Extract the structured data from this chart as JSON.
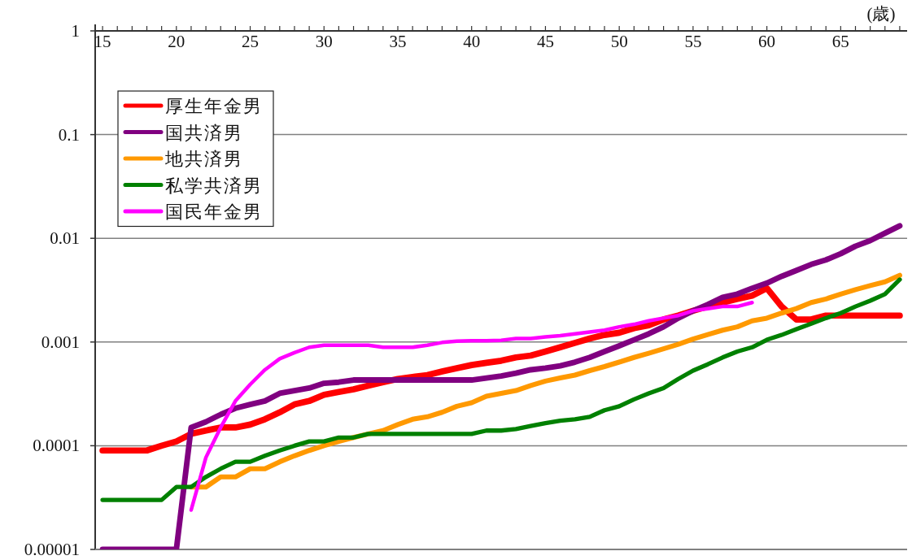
{
  "chart_data": {
    "type": "line",
    "xlabel": "(歳)",
    "log": "y",
    "grid": "y",
    "legend": "top left",
    "x": [
      15,
      16,
      17,
      18,
      19,
      20,
      21,
      22,
      23,
      24,
      25,
      26,
      27,
      28,
      29,
      30,
      31,
      32,
      33,
      34,
      35,
      36,
      37,
      38,
      39,
      40,
      41,
      42,
      43,
      44,
      45,
      46,
      47,
      48,
      49,
      50,
      51,
      52,
      53,
      54,
      55,
      56,
      57,
      58,
      59,
      60,
      61,
      62,
      63,
      64,
      65,
      66,
      67,
      68,
      69
    ],
    "xlim": [
      14.5,
      69.5
    ],
    "xticks": [
      15,
      {
        "value": 16,
        "label": null
      },
      {
        "value": 17,
        "label": null
      },
      {
        "value": 18,
        "label": null
      },
      {
        "value": 19,
        "label": null
      },
      20,
      {
        "value": 21,
        "label": null
      },
      {
        "value": 22,
        "label": null
      },
      {
        "value": 23,
        "label": null
      },
      {
        "value": 24,
        "label": null
      },
      25,
      {
        "value": 26,
        "label": null
      },
      {
        "value": 27,
        "label": null
      },
      {
        "value": 28,
        "label": null
      },
      {
        "value": 29,
        "label": null
      },
      30,
      {
        "value": 31,
        "label": null
      },
      {
        "value": 32,
        "label": null
      },
      {
        "value": 33,
        "label": null
      },
      {
        "value": 34,
        "label": null
      },
      35,
      {
        "value": 36,
        "label": null
      },
      {
        "value": 37,
        "label": null
      },
      {
        "value": 38,
        "label": null
      },
      {
        "value": 39,
        "label": null
      },
      40,
      {
        "value": 41,
        "label": null
      },
      {
        "value": 42,
        "label": null
      },
      {
        "value": 43,
        "label": null
      },
      {
        "value": 44,
        "label": null
      },
      45,
      {
        "value": 46,
        "label": null
      },
      {
        "value": 47,
        "label": null
      },
      {
        "value": 48,
        "label": null
      },
      {
        "value": 49,
        "label": null
      },
      50,
      {
        "value": 51,
        "label": null
      },
      {
        "value": 52,
        "label": null
      },
      {
        "value": 53,
        "label": null
      },
      {
        "value": 54,
        "label": null
      },
      55,
      {
        "value": 56,
        "label": null
      },
      {
        "value": 57,
        "label": null
      },
      {
        "value": 58,
        "label": null
      },
      {
        "value": 59,
        "label": null
      },
      60,
      {
        "value": 61,
        "label": null
      },
      {
        "value": 62,
        "label": null
      },
      {
        "value": 63,
        "label": null
      },
      {
        "value": 64,
        "label": null
      },
      65,
      {
        "value": 66,
        "label": null
      },
      {
        "value": 67,
        "label": null
      },
      {
        "value": 68,
        "label": null
      },
      {
        "value": 69,
        "label": null
      }
    ],
    "ylim": [
      1e-05,
      1
    ],
    "yticks": [
      {
        "value": 1e-05,
        "label": "0.00001"
      },
      {
        "value": 0.0001,
        "label": "0.0001"
      },
      {
        "value": 0.001,
        "label": "0.001"
      },
      {
        "value": 0.01,
        "label": "0.01"
      },
      {
        "value": 0.1,
        "label": "0.1"
      },
      1
    ],
    "series": [
      {
        "name": "厚生年金男",
        "color": "#ff0000",
        "values": [
          9e-05,
          9e-05,
          9e-05,
          9e-05,
          0.0001,
          0.00011,
          0.00013,
          0.00014,
          0.00015,
          0.00015,
          0.00016,
          0.00018,
          0.00021,
          0.00025,
          0.00027,
          0.00031,
          0.00033,
          0.00035,
          0.00038,
          0.00041,
          0.00044,
          0.00046,
          0.00048,
          0.00052,
          0.00056,
          0.0006,
          0.00063,
          0.00066,
          0.00071,
          0.00074,
          0.00081,
          0.00089,
          0.00098,
          0.00108,
          0.00117,
          0.00123,
          0.00136,
          0.00145,
          0.00165,
          0.0018,
          0.002,
          0.0022,
          0.0024,
          0.0026,
          0.0028,
          0.0033,
          0.0022,
          0.00165,
          0.00165,
          0.0018,
          0.0018,
          0.0018,
          0.0018,
          0.0018,
          0.0018
        ]
      },
      {
        "name": "国共済男",
        "color": "#800080",
        "values": [
          1e-05,
          1e-05,
          1e-05,
          1e-05,
          1e-05,
          1e-05,
          0.00015,
          0.00017,
          0.0002,
          0.00023,
          0.00025,
          0.00027,
          0.00032,
          0.00034,
          0.00036,
          0.0004,
          0.00041,
          0.00043,
          0.00043,
          0.00043,
          0.00043,
          0.00043,
          0.00043,
          0.00043,
          0.00043,
          0.00043,
          0.00045,
          0.00047,
          0.0005,
          0.00054,
          0.00056,
          0.00059,
          0.00064,
          0.00071,
          0.00081,
          0.00092,
          0.00105,
          0.0012,
          0.0014,
          0.0017,
          0.002,
          0.0023,
          0.0027,
          0.0029,
          0.0033,
          0.0037,
          0.0043,
          0.0049,
          0.0056,
          0.0062,
          0.0071,
          0.0084,
          0.0095,
          0.0112,
          0.0132
        ]
      },
      {
        "name": "地共済男",
        "color": "#ff9900",
        "values": [
          null,
          null,
          null,
          null,
          null,
          null,
          4e-05,
          4e-05,
          5e-05,
          5e-05,
          6e-05,
          6e-05,
          7e-05,
          8e-05,
          9e-05,
          0.0001,
          0.00011,
          0.00012,
          0.00013,
          0.00014,
          0.00016,
          0.00018,
          0.00019,
          0.00021,
          0.00024,
          0.00026,
          0.0003,
          0.00032,
          0.00034,
          0.00038,
          0.00042,
          0.00045,
          0.00048,
          0.00053,
          0.00058,
          0.00064,
          0.00071,
          0.00078,
          0.00086,
          0.00095,
          0.00107,
          0.00118,
          0.0013,
          0.0014,
          0.0016,
          0.0017,
          0.0019,
          0.0021,
          0.0024,
          0.0026,
          0.0029,
          0.0032,
          0.0035,
          0.0038,
          0.0044
        ]
      },
      {
        "name": "私学共済男",
        "color": "#008000",
        "values": [
          3e-05,
          3e-05,
          3e-05,
          3e-05,
          3e-05,
          4e-05,
          4e-05,
          5e-05,
          6e-05,
          7e-05,
          7e-05,
          8e-05,
          9e-05,
          0.0001,
          0.00011,
          0.00011,
          0.00012,
          0.00012,
          0.00013,
          0.00013,
          0.00013,
          0.00013,
          0.00013,
          0.00013,
          0.00013,
          0.00013,
          0.00014,
          0.00014,
          0.000145,
          0.000155,
          0.000165,
          0.000174,
          0.00018,
          0.00019,
          0.00022,
          0.00024,
          0.00028,
          0.00032,
          0.00036,
          0.00044,
          0.00053,
          0.00061,
          0.00071,
          0.00081,
          0.00089,
          0.00105,
          0.00117,
          0.00133,
          0.0015,
          0.0017,
          0.0019,
          0.0022,
          0.0025,
          0.0029,
          0.004
        ]
      },
      {
        "name": "国民年金男",
        "color": "#ff00ff",
        "values": [
          null,
          null,
          null,
          null,
          null,
          null,
          2.4e-05,
          7.7e-05,
          0.00015,
          0.00027,
          0.00039,
          0.00054,
          0.00069,
          0.00079,
          0.00089,
          0.00093,
          0.00093,
          0.00093,
          0.00093,
          0.00089,
          0.00089,
          0.00089,
          0.00093,
          0.00099,
          0.00102,
          0.00103,
          0.00103,
          0.00104,
          0.00108,
          0.00108,
          0.00112,
          0.00115,
          0.0012,
          0.00125,
          0.0013,
          0.0014,
          0.00148,
          0.0016,
          0.0017,
          0.0018,
          0.002,
          0.0021,
          0.0022,
          0.0022,
          0.0024,
          null,
          null,
          null,
          null,
          null,
          null,
          null,
          null,
          null,
          null
        ]
      }
    ]
  }
}
